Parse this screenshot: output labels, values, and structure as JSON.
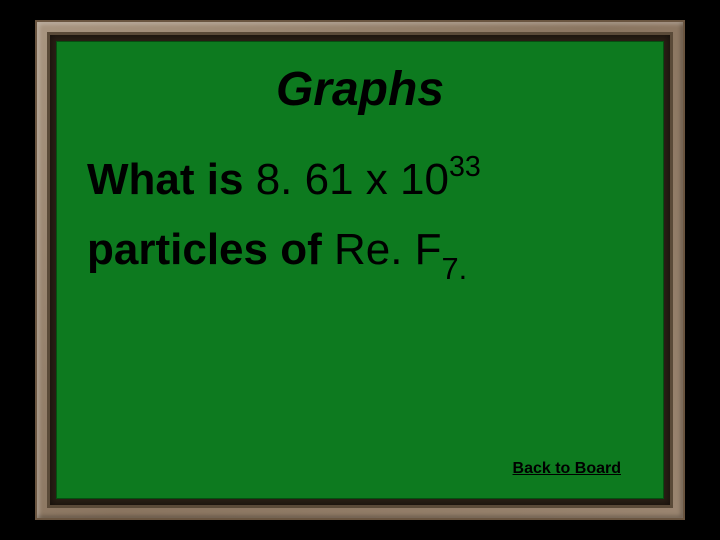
{
  "slide": {
    "title": "Graphs",
    "title_fontsize": 48,
    "line1_prefix": "What is ",
    "line1_value": "8. 61 x 10",
    "line1_exponent": "33",
    "line2_prefix": "particles of ",
    "line2_chem_base": "Re. F",
    "line2_chem_sub": "7.",
    "answer_fontsize": 44,
    "back_link_text": "Back to Board",
    "back_link_fontsize": 16,
    "colors": {
      "background": "#000000",
      "wood_light": "#a89580",
      "wood_dark": "#8a7560",
      "inner_frame": "#2a1f15",
      "chalkboard": "#0d7a1f",
      "text": "#000000"
    }
  }
}
